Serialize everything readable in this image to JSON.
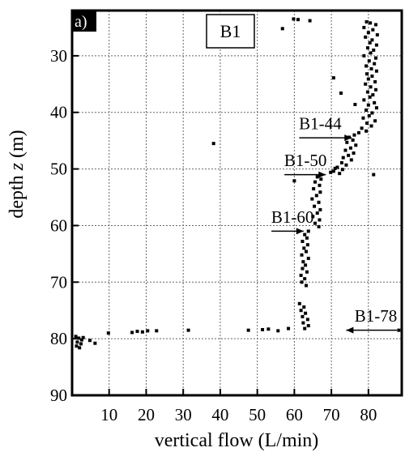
{
  "panel_label": "a)",
  "chart_data": {
    "type": "scatter",
    "title": "B1",
    "xlabel": "vertical flow (L/min)",
    "ylabel_prefix": "depth ",
    "ylabel_var": "z",
    "ylabel_suffix": " (m)",
    "xlim": [
      0,
      89
    ],
    "ylim": [
      22,
      90
    ],
    "y_inverted": true,
    "xticks": [
      10,
      20,
      30,
      40,
      50,
      60,
      70,
      80
    ],
    "yticks": [
      30,
      40,
      50,
      60,
      70,
      80,
      90
    ],
    "grid": true,
    "marker_color": "#000000",
    "annotations": [
      {
        "text": "B1-44",
        "x_text": 67,
        "y_text": 43,
        "x_arrow": 75.5,
        "y_arrow": 44.5
      },
      {
        "text": "B1-50",
        "x_text": 63,
        "y_text": 49.5,
        "x_arrow": 68.5,
        "y_arrow": 51
      },
      {
        "text": "B1-60",
        "x_text": 59.5,
        "y_text": 59.5,
        "x_arrow": 62.5,
        "y_arrow": 61
      },
      {
        "text": "B1-78",
        "x_text": 82,
        "y_text": 77,
        "x_arrow": 74,
        "y_arrow": 78.5
      }
    ],
    "series": [
      {
        "points": [
          [
            79.5,
            24.0
          ],
          [
            80.5,
            24.2
          ],
          [
            82.0,
            24.5
          ],
          [
            78.8,
            25.0
          ],
          [
            81.2,
            25.4
          ],
          [
            80.0,
            25.9
          ],
          [
            82.4,
            26.3
          ],
          [
            79.2,
            26.7
          ],
          [
            81.0,
            27.2
          ],
          [
            80.4,
            27.7
          ],
          [
            82.2,
            28.1
          ],
          [
            79.8,
            28.6
          ],
          [
            81.4,
            29.0
          ],
          [
            80.6,
            29.5
          ],
          [
            78.8,
            30.0
          ],
          [
            82.0,
            30.4
          ],
          [
            80.2,
            30.9
          ],
          [
            81.6,
            31.4
          ],
          [
            79.4,
            31.8
          ],
          [
            80.8,
            32.3
          ],
          [
            82.2,
            32.7
          ],
          [
            79.6,
            33.2
          ],
          [
            81.0,
            33.6
          ],
          [
            80.0,
            34.1
          ],
          [
            81.8,
            34.6
          ],
          [
            79.2,
            35.0
          ],
          [
            80.6,
            35.5
          ],
          [
            82.0,
            36.0
          ],
          [
            79.8,
            36.4
          ],
          [
            81.2,
            36.9
          ],
          [
            80.4,
            37.3
          ],
          [
            78.8,
            37.8
          ],
          [
            81.6,
            38.3
          ],
          [
            80.0,
            38.7
          ],
          [
            82.2,
            39.2
          ],
          [
            79.4,
            39.6
          ],
          [
            81.0,
            40.1
          ],
          [
            80.2,
            40.6
          ],
          [
            78.6,
            41.0
          ],
          [
            81.8,
            41.5
          ],
          [
            79.6,
            41.9
          ],
          [
            80.8,
            42.4
          ],
          [
            78.2,
            42.8
          ],
          [
            79.4,
            43.3
          ],
          [
            77.4,
            43.6
          ],
          [
            76.2,
            44.0
          ],
          [
            74.8,
            44.4
          ],
          [
            75.8,
            44.9
          ],
          [
            74.2,
            45.3
          ],
          [
            76.6,
            45.8
          ],
          [
            75.2,
            46.3
          ],
          [
            73.8,
            46.7
          ],
          [
            76.0,
            47.2
          ],
          [
            74.6,
            47.6
          ],
          [
            73.2,
            48.0
          ],
          [
            75.4,
            48.4
          ],
          [
            72.8,
            48.9
          ],
          [
            74.0,
            49.3
          ],
          [
            71.6,
            49.7
          ],
          [
            73.0,
            50.1
          ],
          [
            70.6,
            50.4
          ],
          [
            72.2,
            50.8
          ],
          [
            69.8,
            50.6
          ],
          [
            71.0,
            49.9
          ],
          [
            66.2,
            51.4
          ],
          [
            67.2,
            51.8
          ],
          [
            65.6,
            52.3
          ],
          [
            66.8,
            52.9
          ],
          [
            65.2,
            53.5
          ],
          [
            67.0,
            54.1
          ],
          [
            66.0,
            54.7
          ],
          [
            64.8,
            55.3
          ],
          [
            66.6,
            55.9
          ],
          [
            65.4,
            56.6
          ],
          [
            67.0,
            57.2
          ],
          [
            66.2,
            57.8
          ],
          [
            65.0,
            58.4
          ],
          [
            66.8,
            59.0
          ],
          [
            65.6,
            59.6
          ],
          [
            66.6,
            60.2
          ],
          [
            63.8,
            61.0
          ],
          [
            62.8,
            61.6
          ],
          [
            63.4,
            62.2
          ],
          [
            62.2,
            62.8
          ],
          [
            63.6,
            63.4
          ],
          [
            62.6,
            64.0
          ],
          [
            63.2,
            64.6
          ],
          [
            62.0,
            65.2
          ],
          [
            63.8,
            65.8
          ],
          [
            62.4,
            66.4
          ],
          [
            63.0,
            67.0
          ],
          [
            62.2,
            67.6
          ],
          [
            63.4,
            68.2
          ],
          [
            61.8,
            68.8
          ],
          [
            62.8,
            69.4
          ],
          [
            62.0,
            70.0
          ],
          [
            63.2,
            70.6
          ],
          [
            61.4,
            73.8
          ],
          [
            62.6,
            74.4
          ],
          [
            61.8,
            75.0
          ],
          [
            63.0,
            75.5
          ],
          [
            62.2,
            76.1
          ],
          [
            63.6,
            76.6
          ],
          [
            62.4,
            77.2
          ],
          [
            63.8,
            77.7
          ],
          [
            62.8,
            78.2
          ],
          [
            1.0,
            79.6
          ],
          [
            1.8,
            79.9
          ],
          [
            2.6,
            80.2
          ],
          [
            1.4,
            80.6
          ],
          [
            2.4,
            80.9
          ],
          [
            1.2,
            81.3
          ],
          [
            3.0,
            79.8
          ],
          [
            2.0,
            81.6
          ],
          [
            4.8,
            80.3
          ],
          [
            6.2,
            80.8
          ],
          [
            9.8,
            79.0
          ],
          [
            16.2,
            78.9
          ],
          [
            17.6,
            78.7
          ],
          [
            19.0,
            78.8
          ],
          [
            20.4,
            78.6
          ],
          [
            22.8,
            78.6
          ],
          [
            31.4,
            78.5
          ],
          [
            47.6,
            78.5
          ],
          [
            51.4,
            78.4
          ],
          [
            53.0,
            78.3
          ],
          [
            55.6,
            78.6
          ],
          [
            58.4,
            78.2
          ],
          [
            88.2,
            78.5
          ],
          [
            59.8,
            23.5
          ],
          [
            61.0,
            23.6
          ],
          [
            64.2,
            23.8
          ],
          [
            56.8,
            25.2
          ],
          [
            70.6,
            33.9
          ],
          [
            72.6,
            36.6
          ],
          [
            76.4,
            38.6
          ],
          [
            38.2,
            45.5
          ],
          [
            81.4,
            51.0
          ],
          [
            60.0,
            52.1
          ]
        ]
      }
    ]
  }
}
